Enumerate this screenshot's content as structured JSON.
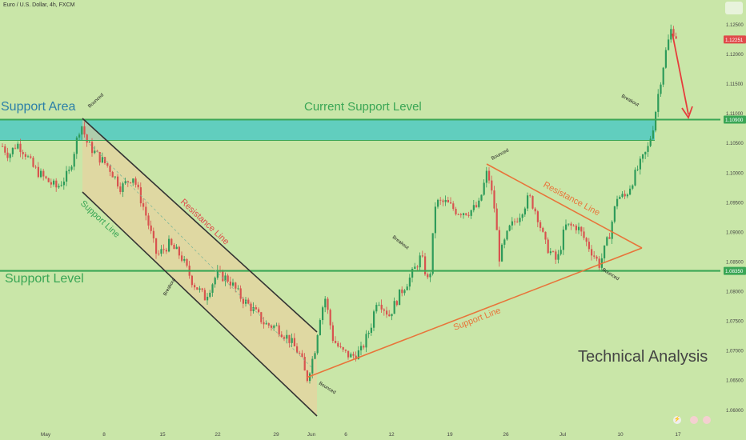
{
  "header": {
    "symbol_title": "Euro / U.S. Dollar, 4h, FXCM"
  },
  "colors": {
    "background": "#c9e6a8",
    "up_candle": "#2e9b5a",
    "down_candle": "#d8534f",
    "support_zone": "#4fc9c2",
    "support_line": "#3aa655",
    "resistance": "#333333",
    "orange": "#e8743a",
    "arrow": "#e63c3c"
  },
  "chart_data": {
    "type": "candlestick",
    "title": "",
    "y_ticks": [
      "1.12500",
      "1.12000",
      "1.11500",
      "1.11000",
      "1.10500",
      "1.10000",
      "1.09500",
      "1.09000",
      "1.08500",
      "1.08000",
      "1.07500",
      "1.07000",
      "1.06500",
      "1.06000"
    ],
    "ylim": [
      1.057,
      1.1285
    ],
    "x_ticks": [
      "May",
      "8",
      "15",
      "22",
      "29",
      "Jun",
      "6",
      "12",
      "19",
      "26",
      "Jul",
      "10",
      "17"
    ],
    "price_labels": {
      "current": "1.12251",
      "support_area": "1.10900",
      "support_level": "1.08350"
    },
    "levels": {
      "support_area_top": 1.109,
      "support_area_bottom": 1.1055,
      "support_level": 1.0835,
      "current_price": 1.12251
    },
    "annotations": {
      "support_area": "Support Area",
      "current_support_level": "Current Support Level",
      "support_level": "Support Level",
      "resistance_line_1": "Resistance Line",
      "support_line_1": "Support Line",
      "resistance_line_2": "Resistance Line",
      "support_line_2": "Support Line",
      "technical_analysis": "Technical Analysis",
      "bounced": "Bounced",
      "breakout": "Breakout"
    }
  }
}
